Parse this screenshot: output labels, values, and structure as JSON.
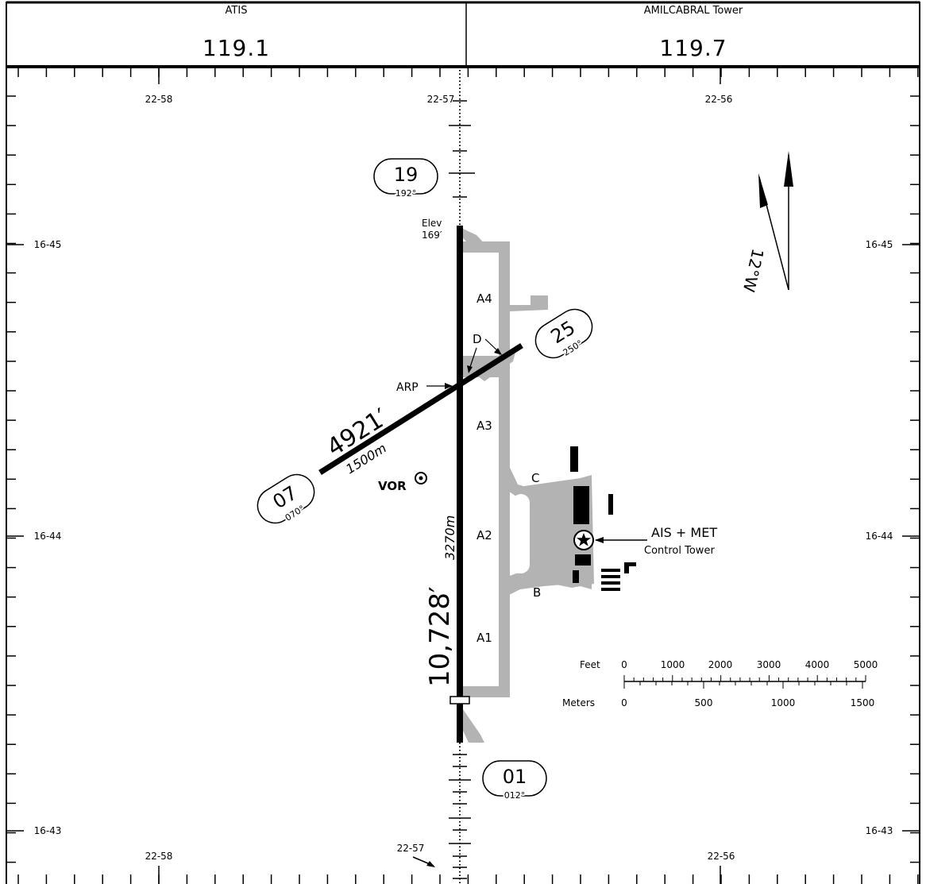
{
  "frequencies": [
    {
      "label": "ATIS",
      "value": "119.1"
    },
    {
      "label": "AMILCABRAL Tower",
      "value": "119.7"
    }
  ],
  "grid": {
    "lon_top": [
      "22-58",
      "22-57",
      "22-56"
    ],
    "lon_bottom": [
      "22-58",
      "22-57",
      "22-56"
    ],
    "lat_left": [
      "16-45",
      "16-44",
      "16-43"
    ],
    "lat_right": [
      "16-45",
      "16-44",
      "16-43"
    ]
  },
  "runways": {
    "rwy19": {
      "number": "19",
      "heading": "192°"
    },
    "rwy01": {
      "number": "01",
      "heading": "012°"
    },
    "rwy25": {
      "number": "25",
      "heading": "250°"
    },
    "rwy07": {
      "number": "07",
      "heading": "070°"
    },
    "main_length_ft": "10,728′",
    "main_length_m": "3270m",
    "cross_length_ft": "4921′",
    "cross_length_m": "1500m"
  },
  "elevation": {
    "label": "Elev",
    "value": "169′"
  },
  "taxiways": [
    "A4",
    "A3",
    "A2",
    "A1",
    "B",
    "C",
    "D"
  ],
  "labels": {
    "arp": "ARP",
    "vor": "VOR",
    "ais_met": "AIS + MET",
    "control_tower": "Control Tower",
    "mag_var": "12°W"
  },
  "scale": {
    "feet_label": "Feet",
    "meters_label": "Meters",
    "feet_ticks": [
      "0",
      "1000",
      "2000",
      "3000",
      "4000",
      "5000"
    ],
    "meter_ticks": [
      "0",
      "500",
      "1000",
      "1500"
    ]
  },
  "colors": {
    "pavement": "#b3b3b3",
    "runway": "#000000",
    "ink": "#000000"
  }
}
